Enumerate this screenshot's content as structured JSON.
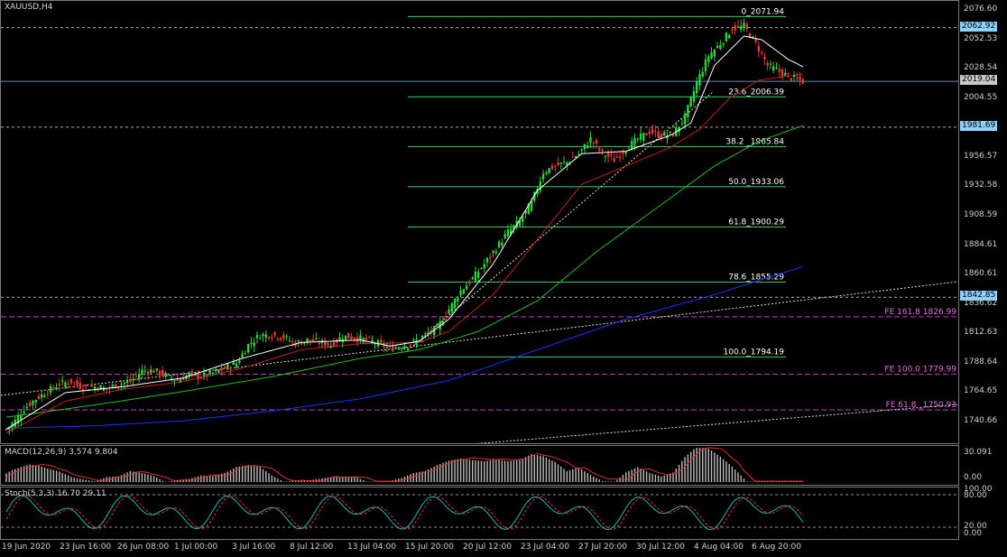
{
  "symbol_label": "XAUUSD,H4",
  "colors": {
    "background": "#000000",
    "bull_candle": "#2fd43a",
    "bear_candle": "#e23a3a",
    "fib_line": "#3ecf6b",
    "fib_text": "#ffffff",
    "fe_line": "#c040c0",
    "fe_text": "#e070e0",
    "ma_fast": "#ffffff",
    "ma_mid": "#c02020",
    "ma_slow": "#20c020",
    "ma_long": "#2030ff",
    "macd_hist": "#bdbdbd",
    "macd_signal": "#e03030",
    "stoch_main": "#20b8c0",
    "stoch_signal": "#e03030"
  },
  "price_scale": [
    "2076.60",
    "2052.53",
    "2028.54",
    "2004.55",
    "1956.57",
    "1932.58",
    "1908.59",
    "1884.61",
    "1860.61",
    "1836.62",
    "1812.63",
    "1788.64",
    "1764.65",
    "1740.66"
  ],
  "price_boxes": [
    {
      "label": "2062.92",
      "price": 2062.92,
      "bg": "#8fd0ff",
      "fg": "#000000"
    },
    {
      "label": "2019.04",
      "price": 2019.04,
      "bg": "#c8c8c8",
      "fg": "#000000"
    },
    {
      "label": "1981.69",
      "price": 1981.69,
      "bg": "#8fd0ff",
      "fg": "#000000"
    },
    {
      "label": "1842.85",
      "price": 1842.85,
      "bg": "#8fd0ff",
      "fg": "#000000"
    }
  ],
  "fibonacci": [
    {
      "label": "0_2071.94",
      "price": 2071.94
    },
    {
      "label": "23.6_2006.39",
      "price": 2006.39
    },
    {
      "label": "38.2 _1965.84",
      "price": 1965.84
    },
    {
      "label": "50.0_1933.06",
      "price": 1933.06
    },
    {
      "label": "61.8_1900.29",
      "price": 1900.29
    },
    {
      "label": "78.6_1855.29",
      "price": 1855.29
    },
    {
      "label": "100.0_1794.19",
      "price": 1794.19
    }
  ],
  "fib_expansion": [
    {
      "label": "FE 161.8 1826.99",
      "price": 1826.99
    },
    {
      "label": "FE 100.0 1779.99",
      "price": 1779.99
    },
    {
      "label": "FE 61.8 _1750.93",
      "price": 1750.93
    }
  ],
  "macd": {
    "label": "MACD(12,26,9) 3.574 9.804",
    "scale_top": "30.091",
    "scale_bottom": "0.00"
  },
  "stoch": {
    "label": "Stoch(5,3,3) 16.70 29.11",
    "scale": [
      "100.00",
      "80.00",
      "20.00",
      "0.00"
    ]
  },
  "time_axis": [
    "19 Jun 2020",
    "23 Jun 16:00",
    "26 Jun 08:00",
    "1 Jul 00:00",
    "3 Jul 16:00",
    "8 Jul 12:00",
    "13 Jul 04:00",
    "15 Jul 20:00",
    "20 Jul 12:00",
    "23 Jul 04:00",
    "27 Jul 20:00",
    "30 Jul 12:00",
    "4 Aug 04:00",
    "6 Aug 20:00"
  ],
  "chart_data": {
    "type": "candlestick",
    "title": "XAUUSD,H4",
    "ylim": [
      1732,
      2082
    ],
    "candle_count": 150,
    "close_path": [
      [
        0,
        1735
      ],
      [
        3,
        1742
      ],
      [
        6,
        1752
      ],
      [
        10,
        1760
      ],
      [
        14,
        1766
      ],
      [
        18,
        1772
      ],
      [
        22,
        1774
      ],
      [
        26,
        1769
      ],
      [
        30,
        1770
      ],
      [
        34,
        1768
      ],
      [
        38,
        1772
      ],
      [
        42,
        1774
      ],
      [
        46,
        1783
      ],
      [
        50,
        1783
      ],
      [
        54,
        1779
      ],
      [
        58,
        1775
      ],
      [
        62,
        1780
      ],
      [
        66,
        1778
      ],
      [
        70,
        1781
      ],
      [
        74,
        1785
      ],
      [
        78,
        1789
      ],
      [
        82,
        1804
      ],
      [
        86,
        1812
      ],
      [
        90,
        1812
      ],
      [
        94,
        1810
      ],
      [
        98,
        1805
      ],
      [
        102,
        1808
      ],
      [
        106,
        1806
      ],
      [
        110,
        1804
      ],
      [
        114,
        1811
      ],
      [
        118,
        1810
      ],
      [
        122,
        1808
      ],
      [
        126,
        1805
      ],
      [
        130,
        1801
      ],
      [
        134,
        1803
      ],
      [
        138,
        1806
      ],
      [
        142,
        1812
      ],
      [
        146,
        1818
      ],
      [
        150,
        1833
      ],
      [
        154,
        1848
      ],
      [
        158,
        1858
      ],
      [
        162,
        1870
      ],
      [
        166,
        1883
      ],
      [
        170,
        1896
      ],
      [
        174,
        1905
      ],
      [
        178,
        1920
      ],
      [
        182,
        1945
      ],
      [
        186,
        1950
      ],
      [
        190,
        1953
      ],
      [
        194,
        1960
      ],
      [
        198,
        1972
      ],
      [
        202,
        1960
      ],
      [
        206,
        1955
      ],
      [
        210,
        1964
      ],
      [
        214,
        1972
      ],
      [
        218,
        1978
      ],
      [
        222,
        1975
      ],
      [
        226,
        1976
      ],
      [
        230,
        1990
      ],
      [
        234,
        2018
      ],
      [
        238,
        2040
      ],
      [
        242,
        2050
      ],
      [
        246,
        2062
      ],
      [
        250,
        2064
      ],
      [
        254,
        2050
      ],
      [
        258,
        2032
      ],
      [
        262,
        2027
      ],
      [
        266,
        2022
      ],
      [
        270,
        2019
      ]
    ],
    "ma_fast_path": [
      [
        0,
        1735
      ],
      [
        20,
        1765
      ],
      [
        40,
        1770
      ],
      [
        60,
        1777
      ],
      [
        80,
        1793
      ],
      [
        100,
        1806
      ],
      [
        120,
        1808
      ],
      [
        130,
        1803
      ],
      [
        140,
        1807
      ],
      [
        150,
        1825
      ],
      [
        165,
        1870
      ],
      [
        180,
        1930
      ],
      [
        195,
        1960
      ],
      [
        210,
        1962
      ],
      [
        225,
        1975
      ],
      [
        232,
        1985
      ],
      [
        240,
        2032
      ],
      [
        250,
        2056
      ],
      [
        256,
        2053
      ],
      [
        265,
        2037
      ],
      [
        270,
        2031
      ]
    ],
    "ma_mid_path": [
      [
        0,
        1732
      ],
      [
        20,
        1758
      ],
      [
        40,
        1768
      ],
      [
        60,
        1774
      ],
      [
        80,
        1785
      ],
      [
        100,
        1800
      ],
      [
        120,
        1805
      ],
      [
        140,
        1806
      ],
      [
        150,
        1815
      ],
      [
        165,
        1845
      ],
      [
        180,
        1890
      ],
      [
        195,
        1935
      ],
      [
        210,
        1950
      ],
      [
        225,
        1965
      ],
      [
        235,
        1980
      ],
      [
        245,
        2005
      ],
      [
        255,
        2020
      ],
      [
        270,
        2025
      ]
    ],
    "ma_slow_path": [
      [
        0,
        1745
      ],
      [
        30,
        1755
      ],
      [
        60,
        1766
      ],
      [
        90,
        1778
      ],
      [
        120,
        1793
      ],
      [
        140,
        1800
      ],
      [
        160,
        1815
      ],
      [
        180,
        1840
      ],
      [
        200,
        1880
      ],
      [
        220,
        1915
      ],
      [
        240,
        1950
      ],
      [
        255,
        1970
      ],
      [
        270,
        1983
      ]
    ],
    "ma_long_path": [
      [
        0,
        1736
      ],
      [
        30,
        1738
      ],
      [
        60,
        1742
      ],
      [
        90,
        1750
      ],
      [
        120,
        1760
      ],
      [
        150,
        1775
      ],
      [
        180,
        1800
      ],
      [
        210,
        1825
      ],
      [
        240,
        1845
      ],
      [
        270,
        1868
      ]
    ]
  }
}
